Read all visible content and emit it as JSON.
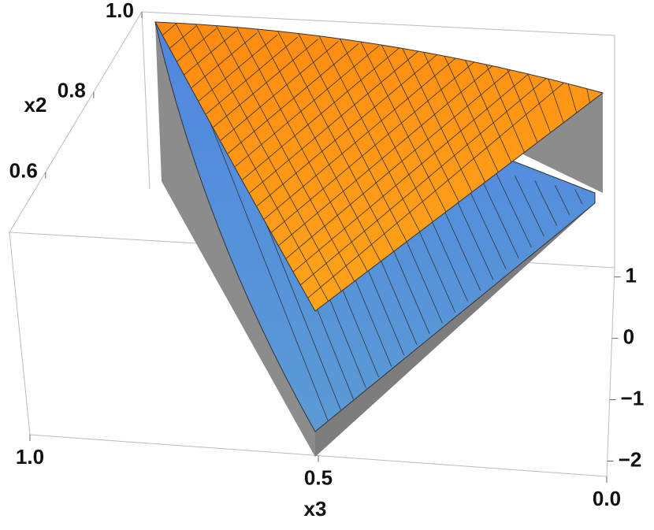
{
  "chart_data": {
    "type": "surface3d",
    "axes": [
      {
        "name": "x2",
        "label": "x2",
        "lim": [
          0.45,
          1.0
        ],
        "ticks": [
          {
            "value": 1,
            "label": "1.0"
          },
          {
            "value": 0.8,
            "label": "0.8"
          },
          {
            "value": 0.6,
            "label": "0.6"
          }
        ]
      },
      {
        "name": "x3",
        "label": "x3",
        "lim": [
          0,
          1
        ],
        "ticks": [
          {
            "value": 1,
            "label": "1.0"
          },
          {
            "value": 0.5,
            "label": "0.5"
          },
          {
            "value": 0,
            "label": "0.0"
          }
        ]
      },
      {
        "name": "z",
        "lim": [
          -2.25,
          1.15
        ],
        "ticks": [
          1,
          0,
          {
            "value": -1,
            "label": "−1"
          },
          {
            "value": -2,
            "label": "−2"
          }
        ]
      }
    ],
    "colors": {
      "upper": "#ffa31a",
      "lower": "#5b9bd5",
      "wall": "#8c8c8c"
    }
  }
}
